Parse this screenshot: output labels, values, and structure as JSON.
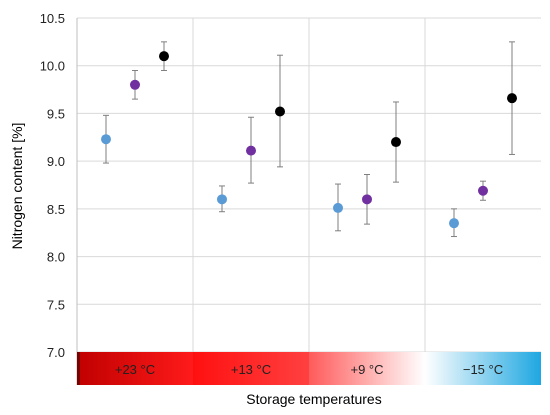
{
  "chart_data": {
    "type": "scatter",
    "ylabel": "Nitrogen content [%]",
    "xlabel": "Storage temperatures",
    "ylim": [
      7.0,
      10.5
    ],
    "yticks": [
      "7.0",
      "7.5",
      "8.0",
      "8.5",
      "9.0",
      "9.5",
      "10.0",
      "10.5"
    ],
    "grid": "horizontal and vertical",
    "categories": [
      "+23 °C",
      "+13 °C",
      "+9 °C",
      "−15 °C"
    ],
    "series": [
      {
        "color": "#5b9bd5",
        "values": [
          9.23,
          8.6,
          8.51,
          8.35
        ],
        "err_low": [
          8.98,
          8.47,
          8.27,
          8.21
        ],
        "err_high": [
          9.48,
          8.74,
          8.76,
          8.5
        ]
      },
      {
        "color": "#7030a0",
        "values": [
          9.8,
          9.11,
          8.6,
          8.69
        ],
        "err_low": [
          9.65,
          8.77,
          8.34,
          8.59
        ],
        "err_high": [
          9.95,
          9.46,
          8.86,
          8.79
        ]
      },
      {
        "color": "#000000",
        "values": [
          10.1,
          9.52,
          9.2,
          9.66
        ],
        "err_low": [
          9.95,
          8.94,
          8.78,
          9.07
        ],
        "err_high": [
          10.25,
          10.11,
          9.62,
          10.25
        ]
      }
    ],
    "band_colors": [
      [
        "#c00000",
        "#ff1a1a"
      ],
      [
        "#ff1010",
        "#ff4040"
      ],
      [
        "#ff5a5a",
        "#ffffff"
      ],
      [
        "#ffffff",
        "#1ea7e1"
      ]
    ]
  }
}
